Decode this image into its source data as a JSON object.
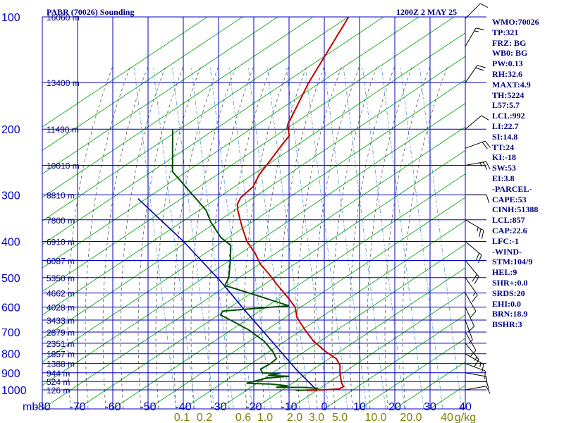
{
  "header": {
    "station_title": "PABR (70026) Sounding",
    "valid_time": "1200Z  2 MAY 25"
  },
  "stats": [
    "WMO:70026",
    "TP:321",
    "FRZ: BG",
    "WB0: BG",
    "PW:0.13",
    "RH:32.6",
    "MAXT:4.9",
    "TH:5224",
    "L57:5.7",
    "LCL:992",
    "LI:22.7",
    "SI:14.8",
    "TT:24",
    "KI:-18",
    "SW:53",
    "EI:3.8",
    "-PARCEL-",
    "CAPE:53",
    "CINH:51388",
    "LCL:857",
    "CAP:22.6",
    "LFC:-1",
    "-WIND-",
    "STM:104/9",
    "HEL:9",
    "SHR+:0.0",
    "SRDS:20",
    "EHI:0.0",
    "BRN:18.9",
    "BSHR:3"
  ],
  "colors": {
    "background": "#ffffff",
    "grid": "#0000c0",
    "dry_adiabats": "#00a000",
    "moist_adiabats": "#404040",
    "mixing_ratio": "#3a8fcf",
    "temperature": "#c00000",
    "dewpoint": "#005000",
    "parcel": "#0000b0",
    "labels": "#000080",
    "mixing_labels": "#808000",
    "wind_barbs": "#000000"
  },
  "chart_data": {
    "type": "skew-t log-p",
    "x_axis_unit": "mb",
    "x_ticks": [
      "-80",
      "-70",
      "-60",
      "-50",
      "-40",
      "-30",
      "-20",
      "-10",
      "0",
      "10",
      "20",
      "30",
      "40"
    ],
    "x_range": [
      -80,
      40
    ],
    "pressure_ticks": [
      "100",
      "200",
      "300",
      "400",
      "500",
      "600",
      "700",
      "800",
      "900",
      "1000"
    ],
    "height_labels": [
      {
        "p": 100,
        "label": "16060 m"
      },
      {
        "p": 150,
        "label": "13400 m"
      },
      {
        "p": 200,
        "label": "11490 m"
      },
      {
        "p": 250,
        "label": "10010 m"
      },
      {
        "p": 300,
        "label": "8810 m"
      },
      {
        "p": 350,
        "label": "7800 m"
      },
      {
        "p": 400,
        "label": "6910 m"
      },
      {
        "p": 450,
        "label": "6087 m"
      },
      {
        "p": 500,
        "label": "5350 m"
      },
      {
        "p": 550,
        "label": "4662 m"
      },
      {
        "p": 600,
        "label": "4028 m"
      },
      {
        "p": 650,
        "label": "3433 m"
      },
      {
        "p": 700,
        "label": "2879 m"
      },
      {
        "p": 750,
        "label": "2351 m"
      },
      {
        "p": 800,
        "label": "1857 m"
      },
      {
        "p": 850,
        "label": "1388 m"
      },
      {
        "p": 900,
        "label": "944 m"
      },
      {
        "p": 950,
        "label": "524 m"
      },
      {
        "p": 1000,
        "label": "126 m"
      }
    ],
    "mixing_ratio_labels": [
      "0.1",
      "0.2",
      "0.6",
      "1.0",
      "2.0",
      "3.0",
      "5.0",
      "10.0",
      "20.0",
      "40",
      "g/kg"
    ],
    "temperature_series": [
      [
        -46,
        100
      ],
      [
        -48,
        150
      ],
      [
        -48,
        195
      ],
      [
        -46,
        208
      ],
      [
        -47,
        225
      ],
      [
        -48,
        245
      ],
      [
        -49,
        265
      ],
      [
        -49,
        285
      ],
      [
        -51,
        305
      ],
      [
        -51,
        318
      ],
      [
        -50,
        330
      ],
      [
        -48,
        350
      ],
      [
        -46,
        370
      ],
      [
        -43,
        400
      ],
      [
        -39,
        430
      ],
      [
        -36,
        460
      ],
      [
        -32,
        490
      ],
      [
        -28,
        525
      ],
      [
        -24,
        560
      ],
      [
        -20,
        600
      ],
      [
        -18,
        640
      ],
      [
        -14,
        690
      ],
      [
        -10,
        740
      ],
      [
        -5,
        790
      ],
      [
        -1,
        825
      ],
      [
        1,
        860
      ],
      [
        2,
        900
      ],
      [
        3,
        930
      ],
      [
        4,
        960
      ],
      [
        5,
        980
      ],
      [
        4,
        995
      ],
      [
        0,
        1000
      ],
      [
        -5,
        1003
      ]
    ],
    "dewpoint_series": [
      [
        -80,
        200
      ],
      [
        -74,
        260
      ],
      [
        -65,
        300
      ],
      [
        -59,
        330
      ],
      [
        -56,
        355
      ],
      [
        -51,
        390
      ],
      [
        -47,
        410
      ],
      [
        -45,
        450
      ],
      [
        -43,
        500
      ],
      [
        -43,
        525
      ],
      [
        -35,
        550
      ],
      [
        -22,
        595
      ],
      [
        -40,
        615
      ],
      [
        -40,
        630
      ],
      [
        -34,
        665
      ],
      [
        -30,
        690
      ],
      [
        -24,
        740
      ],
      [
        -20,
        790
      ],
      [
        -18,
        825
      ],
      [
        -19,
        850
      ],
      [
        -21,
        880
      ],
      [
        -20,
        900
      ],
      [
        -15,
        905
      ],
      [
        -18,
        915
      ],
      [
        -12,
        920
      ],
      [
        -18,
        930
      ],
      [
        -23,
        960
      ],
      [
        -16,
        965
      ],
      [
        -11,
        975
      ],
      [
        -14,
        985
      ],
      [
        -6,
        985
      ],
      [
        -2,
        990
      ],
      [
        -3,
        1000
      ],
      [
        -8,
        1003
      ]
    ],
    "parcel_series": [
      [
        -80,
        307
      ],
      [
        -61,
        400
      ],
      [
        -45,
        510
      ],
      [
        -33,
        620
      ],
      [
        -21,
        750
      ],
      [
        -11,
        880
      ],
      [
        -2,
        1003
      ]
    ],
    "wind_barbs": [
      {
        "p": 101,
        "dir": 225,
        "spd": 10
      },
      {
        "p": 120,
        "dir": 210,
        "spd": 15
      },
      {
        "p": 150,
        "dir": 215,
        "spd": 20
      },
      {
        "p": 200,
        "dir": 230,
        "spd": 10
      },
      {
        "p": 225,
        "dir": 250,
        "spd": 20
      },
      {
        "p": 250,
        "dir": 260,
        "spd": 25
      },
      {
        "p": 300,
        "dir": 270,
        "spd": 10
      },
      {
        "p": 350,
        "dir": 300,
        "spd": 25
      },
      {
        "p": 400,
        "dir": 310,
        "spd": 20
      },
      {
        "p": 450,
        "dir": 320,
        "spd": 20
      },
      {
        "p": 500,
        "dir": 325,
        "spd": 15
      },
      {
        "p": 550,
        "dir": 330,
        "spd": 10
      },
      {
        "p": 600,
        "dir": 335,
        "spd": 10
      },
      {
        "p": 650,
        "dir": 340,
        "spd": 5
      },
      {
        "p": 700,
        "dir": 330,
        "spd": 10
      },
      {
        "p": 750,
        "dir": 320,
        "spd": 15
      },
      {
        "p": 800,
        "dir": 300,
        "spd": 15
      },
      {
        "p": 850,
        "dir": 290,
        "spd": 10
      },
      {
        "p": 900,
        "dir": 280,
        "spd": 10
      },
      {
        "p": 950,
        "dir": 270,
        "spd": 10
      },
      {
        "p": 1000,
        "dir": 260,
        "spd": 10
      }
    ]
  }
}
